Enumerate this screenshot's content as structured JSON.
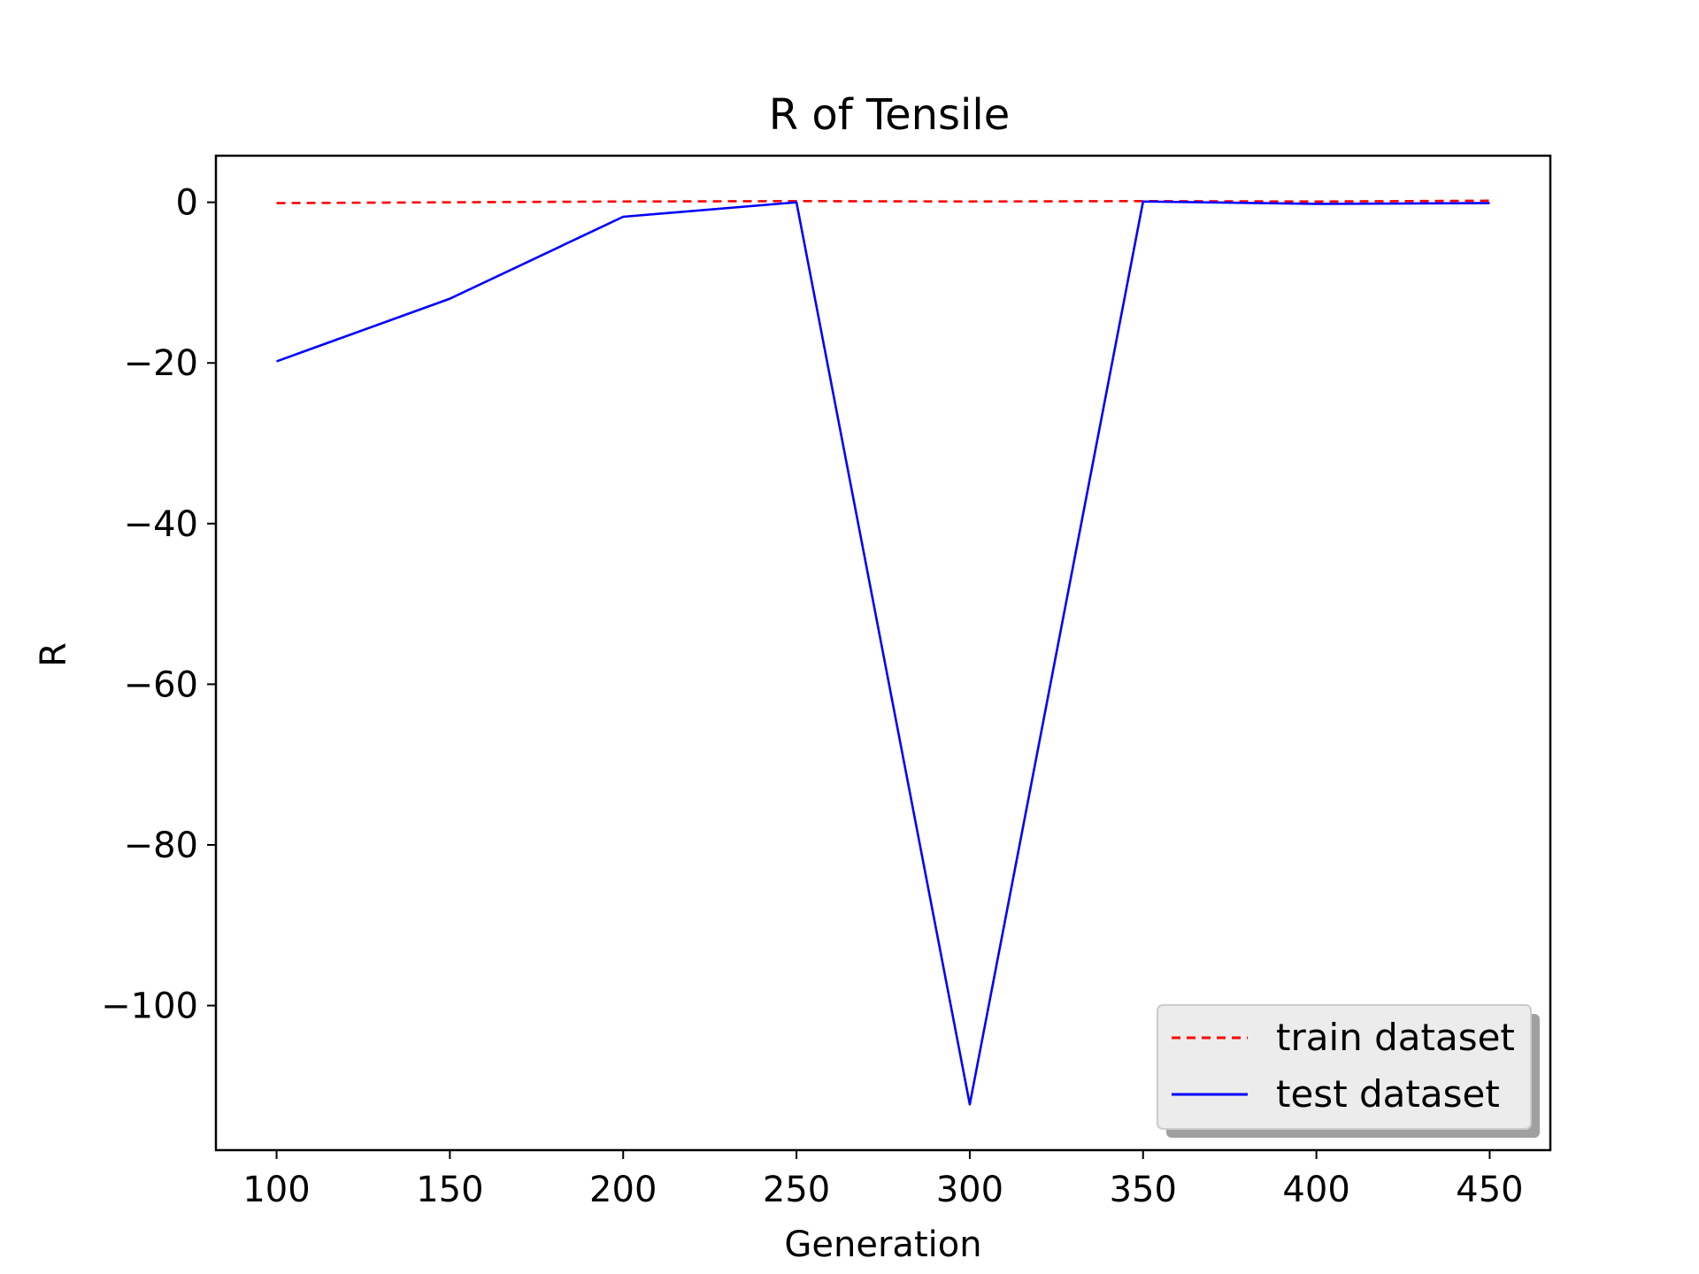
{
  "chart_data": {
    "type": "line",
    "title": "R of Tensile",
    "xlabel": "Generation",
    "ylabel": "R",
    "x": [
      100,
      150,
      200,
      250,
      300,
      350,
      400,
      450
    ],
    "xlim": [
      82.5,
      467.5
    ],
    "ylim": [
      -118,
      5.8
    ],
    "xticks": [
      100,
      150,
      200,
      250,
      300,
      350,
      400,
      450
    ],
    "xtick_labels": [
      "100",
      "150",
      "200",
      "250",
      "300",
      "350",
      "400",
      "450"
    ],
    "yticks": [
      0,
      -20,
      -40,
      -60,
      -80,
      -100
    ],
    "ytick_labels": [
      "0",
      "−20",
      "−40",
      "−60",
      "−80",
      "−100"
    ],
    "grid": false,
    "legend_position": "lower-right",
    "series": [
      {
        "name": "train dataset",
        "color": "#ff0000",
        "style": "dashed",
        "values": [
          -0.1,
          0.0,
          0.1,
          0.15,
          0.1,
          0.15,
          0.1,
          0.2
        ]
      },
      {
        "name": "test dataset",
        "color": "#0000ff",
        "style": "solid",
        "values": [
          -19.8,
          -12.0,
          -1.8,
          0.0,
          -112.3,
          0.1,
          -0.2,
          -0.1
        ]
      }
    ]
  }
}
